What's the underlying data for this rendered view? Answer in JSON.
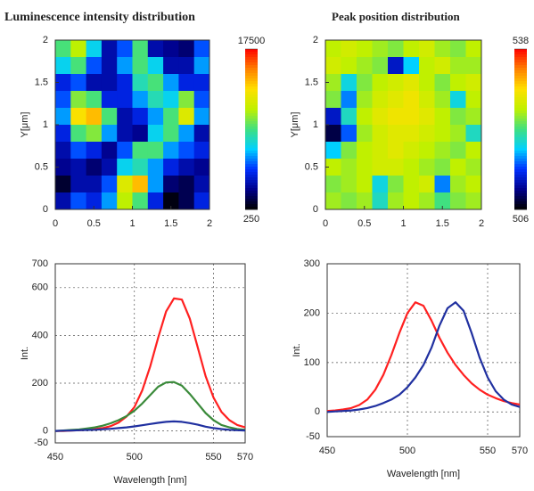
{
  "chart_data": [
    {
      "type": "heatmap",
      "title": "Luminescence intensity distribution",
      "ylabel": "Y[μm]",
      "x": [
        0.1,
        0.3,
        0.5,
        0.7,
        0.9,
        1.1,
        1.3,
        1.5,
        1.7,
        1.9
      ],
      "y": [
        1.9,
        1.7,
        1.5,
        1.3,
        1.1,
        0.9,
        0.7,
        0.5,
        0.3,
        0.1
      ],
      "z": [
        [
          9000,
          11000,
          7000,
          3000,
          5000,
          9000,
          3000,
          2500,
          2000,
          5000
        ],
        [
          7000,
          9000,
          5000,
          3000,
          6000,
          9000,
          7000,
          3000,
          3000,
          6000
        ],
        [
          4000,
          5000,
          3000,
          3000,
          4000,
          8000,
          9000,
          6000,
          4000,
          4000
        ],
        [
          5000,
          10000,
          9000,
          4000,
          4000,
          6000,
          8000,
          7000,
          10000,
          5000
        ],
        [
          6000,
          13000,
          14000,
          9000,
          3000,
          4000,
          6000,
          9000,
          12000,
          6000
        ],
        [
          4000,
          9000,
          10000,
          6000,
          3000,
          2500,
          7000,
          9000,
          6000,
          3000
        ],
        [
          3000,
          5000,
          4000,
          2500,
          5000,
          9000,
          9000,
          6000,
          5000,
          4000
        ],
        [
          2500,
          3000,
          2000,
          3000,
          7000,
          8000,
          6000,
          4000,
          3000,
          2500
        ],
        [
          1000,
          3000,
          3000,
          5000,
          12000,
          14000,
          6000,
          2000,
          1500,
          3000
        ],
        [
          3000,
          5000,
          4000,
          6000,
          11000,
          9000,
          4000,
          500,
          1500,
          4000
        ]
      ],
      "xlim": [
        0,
        2
      ],
      "ylim": [
        0,
        2
      ],
      "xticks": [
        0,
        0.5,
        1,
        1.5,
        2
      ],
      "yticks": [
        0,
        0.5,
        1,
        1.5,
        2
      ],
      "zlim": [
        250,
        17500
      ],
      "zticks": [
        250,
        17500
      ],
      "colormap": [
        "#000000",
        "#00008b",
        "#0030ff",
        "#00d0ff",
        "#40e080",
        "#c0f000",
        "#ffe000",
        "#ff8000",
        "#ff0000"
      ]
    },
    {
      "type": "heatmap",
      "title": "Peak position distribution",
      "ylabel": "Y[μm]",
      "x": [
        0.1,
        0.3,
        0.5,
        0.7,
        0.9,
        1.1,
        1.3,
        1.5,
        1.7,
        1.9
      ],
      "y": [
        1.9,
        1.7,
        1.5,
        1.3,
        1.1,
        0.9,
        0.7,
        0.5,
        0.3,
        0.1
      ],
      "z": [
        [
          526,
          527,
          526,
          525,
          524,
          526,
          527,
          525,
          524,
          526
        ],
        [
          527,
          526,
          525,
          524,
          512,
          518,
          526,
          527,
          525,
          525
        ],
        [
          525,
          519,
          524,
          526,
          527,
          528,
          526,
          524,
          526,
          527
        ],
        [
          524,
          516,
          525,
          527,
          528,
          529,
          527,
          525,
          519,
          526
        ],
        [
          512,
          520,
          526,
          528,
          529,
          529,
          528,
          526,
          524,
          525
        ],
        [
          508,
          515,
          525,
          527,
          528,
          528,
          527,
          526,
          525,
          520
        ],
        [
          518,
          524,
          526,
          527,
          528,
          527,
          526,
          525,
          524,
          526
        ],
        [
          526,
          525,
          526,
          527,
          527,
          526,
          525,
          524,
          526,
          525
        ],
        [
          524,
          525,
          526,
          519,
          524,
          526,
          527,
          516,
          525,
          526
        ],
        [
          525,
          524,
          525,
          520,
          525,
          526,
          525,
          522,
          524,
          525
        ]
      ],
      "xlim": [
        0,
        2
      ],
      "ylim": [
        0,
        2
      ],
      "xticks": [
        0,
        0.5,
        1,
        1.5,
        2
      ],
      "yticks": [
        0,
        0.5,
        1,
        1.5,
        2
      ],
      "zlim": [
        506,
        538
      ],
      "zticks": [
        506,
        538
      ],
      "colormap": [
        "#000000",
        "#00008b",
        "#0030ff",
        "#00d0ff",
        "#40e080",
        "#c0f000",
        "#ffe000",
        "#ff8000",
        "#ff0000"
      ]
    },
    {
      "type": "line",
      "xlabel": "Wavelength [nm]",
      "ylabel": "Int.",
      "x": [
        450,
        455,
        460,
        465,
        470,
        475,
        480,
        485,
        490,
        495,
        500,
        505,
        510,
        515,
        520,
        525,
        530,
        535,
        540,
        545,
        550,
        555,
        560,
        565,
        570
      ],
      "series": [
        {
          "color": "#ff2020",
          "values": [
            0,
            0,
            2,
            3,
            5,
            8,
            12,
            20,
            35,
            60,
            100,
            170,
            270,
            390,
            500,
            555,
            550,
            470,
            350,
            230,
            140,
            80,
            45,
            25,
            15
          ]
        },
        {
          "color": "#3a8a3a",
          "values": [
            0,
            2,
            4,
            6,
            10,
            15,
            22,
            32,
            45,
            62,
            85,
            115,
            150,
            185,
            203,
            205,
            190,
            155,
            115,
            75,
            45,
            25,
            15,
            8,
            5
          ]
        },
        {
          "color": "#2030a0",
          "values": [
            0,
            1,
            2,
            3,
            4,
            5,
            7,
            9,
            12,
            15,
            19,
            24,
            29,
            34,
            38,
            40,
            38,
            33,
            26,
            18,
            12,
            8,
            5,
            3,
            2
          ]
        }
      ],
      "xlim": [
        450,
        570
      ],
      "ylim": [
        -50,
        700
      ],
      "xticks": [
        450,
        500,
        550,
        570
      ],
      "yticks": [
        -50,
        0,
        200,
        400,
        600,
        700
      ],
      "grid": true
    },
    {
      "type": "line",
      "xlabel": "Wavelength [nm]",
      "ylabel": "Int.",
      "x": [
        450,
        455,
        460,
        465,
        470,
        475,
        480,
        485,
        490,
        495,
        500,
        505,
        510,
        515,
        520,
        525,
        530,
        535,
        540,
        545,
        550,
        555,
        560,
        565,
        570
      ],
      "series": [
        {
          "color": "#ff2020",
          "values": [
            2,
            3,
            5,
            8,
            14,
            25,
            45,
            75,
            115,
            160,
            200,
            222,
            215,
            185,
            150,
            120,
            95,
            75,
            58,
            45,
            35,
            28,
            22,
            18,
            15
          ]
        },
        {
          "color": "#2030a0",
          "values": [
            0,
            1,
            2,
            3,
            5,
            8,
            12,
            18,
            25,
            35,
            50,
            70,
            95,
            130,
            175,
            210,
            222,
            205,
            160,
            110,
            70,
            42,
            25,
            15,
            10
          ]
        }
      ],
      "xlim": [
        450,
        570
      ],
      "ylim": [
        -50,
        300
      ],
      "xticks": [
        450,
        500,
        550,
        570
      ],
      "yticks": [
        -50,
        0,
        100,
        200,
        300
      ],
      "grid": true
    }
  ]
}
